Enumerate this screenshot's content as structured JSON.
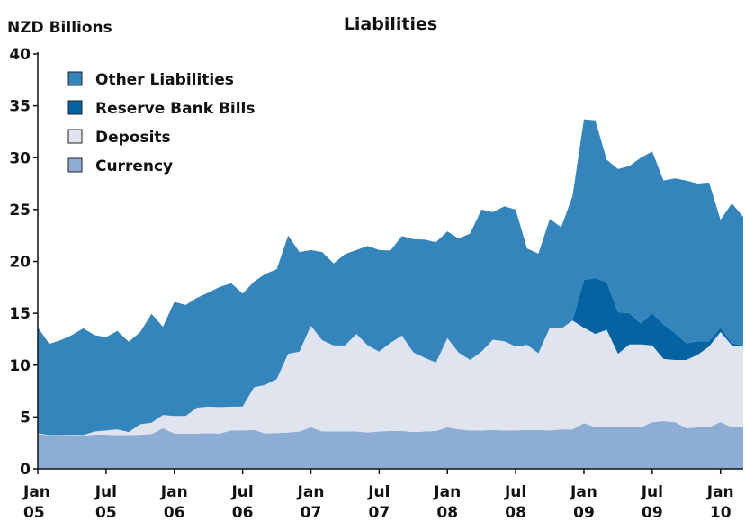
{
  "chart_data": {
    "type": "area",
    "stacked": true,
    "title": "Liabilities",
    "ylabel": "NZD Billions",
    "ylim": [
      0,
      40
    ],
    "yticks": [
      0,
      5,
      10,
      15,
      20,
      25,
      30,
      35,
      40
    ],
    "xticks": [
      {
        "month": "Jan",
        "year": "05"
      },
      {
        "month": "Jul",
        "year": "05"
      },
      {
        "month": "Jan",
        "year": "06"
      },
      {
        "month": "Jul",
        "year": "06"
      },
      {
        "month": "Jan",
        "year": "07"
      },
      {
        "month": "Jul",
        "year": "07"
      },
      {
        "month": "Jan",
        "year": "08"
      },
      {
        "month": "Jul",
        "year": "08"
      },
      {
        "month": "Jan",
        "year": "09"
      },
      {
        "month": "Jul",
        "year": "09"
      },
      {
        "month": "Jan",
        "year": "10"
      }
    ],
    "legend_position": "top-left",
    "x": [
      "2005-01",
      "2005-02",
      "2005-03",
      "2005-04",
      "2005-05",
      "2005-06",
      "2005-07",
      "2005-08",
      "2005-09",
      "2005-10",
      "2005-11",
      "2005-12",
      "2006-01",
      "2006-02",
      "2006-03",
      "2006-04",
      "2006-05",
      "2006-06",
      "2006-07",
      "2006-08",
      "2006-09",
      "2006-10",
      "2006-11",
      "2006-12",
      "2007-01",
      "2007-02",
      "2007-03",
      "2007-04",
      "2007-05",
      "2007-06",
      "2007-07",
      "2007-08",
      "2007-09",
      "2007-10",
      "2007-11",
      "2007-12",
      "2008-01",
      "2008-02",
      "2008-03",
      "2008-04",
      "2008-05",
      "2008-06",
      "2008-07",
      "2008-08",
      "2008-09",
      "2008-10",
      "2008-11",
      "2008-12",
      "2009-01",
      "2009-02",
      "2009-03",
      "2009-04",
      "2009-05",
      "2009-06",
      "2009-07",
      "2009-08",
      "2009-09",
      "2009-10",
      "2009-11",
      "2009-12",
      "2010-01",
      "2010-02",
      "2010-03"
    ],
    "series": [
      {
        "name": "Currency",
        "color": "#8eadd5",
        "values": [
          3.4,
          3.2,
          3.3,
          3.25,
          3.2,
          3.3,
          3.3,
          3.25,
          3.25,
          3.3,
          3.35,
          3.9,
          3.4,
          3.4,
          3.4,
          3.45,
          3.4,
          3.7,
          3.7,
          3.75,
          3.4,
          3.45,
          3.5,
          3.6,
          4.0,
          3.6,
          3.6,
          3.6,
          3.6,
          3.5,
          3.6,
          3.65,
          3.65,
          3.55,
          3.6,
          3.65,
          4.0,
          3.8,
          3.7,
          3.7,
          3.75,
          3.7,
          3.7,
          3.75,
          3.75,
          3.7,
          3.8,
          3.8,
          4.4,
          4.0,
          4.0,
          4.0,
          4.0,
          4.0,
          4.5,
          4.6,
          4.5,
          3.9,
          4.0,
          4.0,
          4.5,
          4.0,
          4.0
        ]
      },
      {
        "name": "Deposits",
        "color": "#dfe4ef",
        "values": [
          0.05,
          0.05,
          0.0,
          0.05,
          0.05,
          0.3,
          0.4,
          0.55,
          0.3,
          1.0,
          1.1,
          1.3,
          1.7,
          1.7,
          2.5,
          2.55,
          2.55,
          2.3,
          2.3,
          4.1,
          4.7,
          5.2,
          7.6,
          7.7,
          9.8,
          8.8,
          8.3,
          8.3,
          9.4,
          8.4,
          7.7,
          8.5,
          9.2,
          7.7,
          7.1,
          6.6,
          8.6,
          7.4,
          6.8,
          7.6,
          8.7,
          8.6,
          8.1,
          8.2,
          7.4,
          9.9,
          9.7,
          10.5,
          9.2,
          9.0,
          9.4,
          7.1,
          8.0,
          8.0,
          7.4,
          6.0,
          6.0,
          6.6,
          7.0,
          7.8,
          8.7,
          7.9,
          7.8
        ]
      },
      {
        "name": "Reserve Bank Bills",
        "color": "#0563a2",
        "values": [
          0,
          0,
          0,
          0,
          0,
          0,
          0,
          0,
          0,
          0,
          0,
          0,
          0,
          0,
          0,
          0,
          0,
          0,
          0,
          0,
          0,
          0,
          0,
          0,
          0,
          0,
          0,
          0,
          0,
          0,
          0,
          0,
          0,
          0,
          0,
          0,
          0,
          0,
          0,
          0,
          0,
          0,
          0,
          0,
          0,
          0,
          0,
          0,
          4.6,
          5.4,
          4.6,
          4.0,
          3.0,
          2.0,
          3.1,
          3.3,
          2.6,
          1.6,
          1.3,
          0.5,
          0.4,
          0.2,
          0.1
        ]
      },
      {
        "name": "Other Liabilities",
        "color": "#3585bd",
        "values": [
          10.2,
          8.8,
          9.1,
          9.6,
          10.3,
          9.3,
          9.0,
          9.5,
          8.7,
          8.9,
          10.5,
          8.5,
          11.0,
          10.7,
          10.6,
          11.0,
          11.6,
          11.9,
          10.9,
          10.2,
          10.7,
          10.6,
          11.4,
          9.6,
          7.3,
          8.5,
          7.9,
          8.8,
          8.1,
          9.6,
          9.8,
          8.9,
          9.6,
          10.9,
          11.4,
          11.6,
          10.3,
          11.0,
          12.2,
          13.7,
          12.3,
          13.0,
          13.2,
          9.3,
          9.6,
          10.5,
          9.8,
          12.0,
          15.5,
          15.2,
          11.8,
          13.8,
          14.2,
          16.0,
          15.6,
          13.9,
          14.9,
          15.7,
          15.2,
          15.3,
          10.4,
          13.5,
          12.4
        ]
      }
    ]
  }
}
